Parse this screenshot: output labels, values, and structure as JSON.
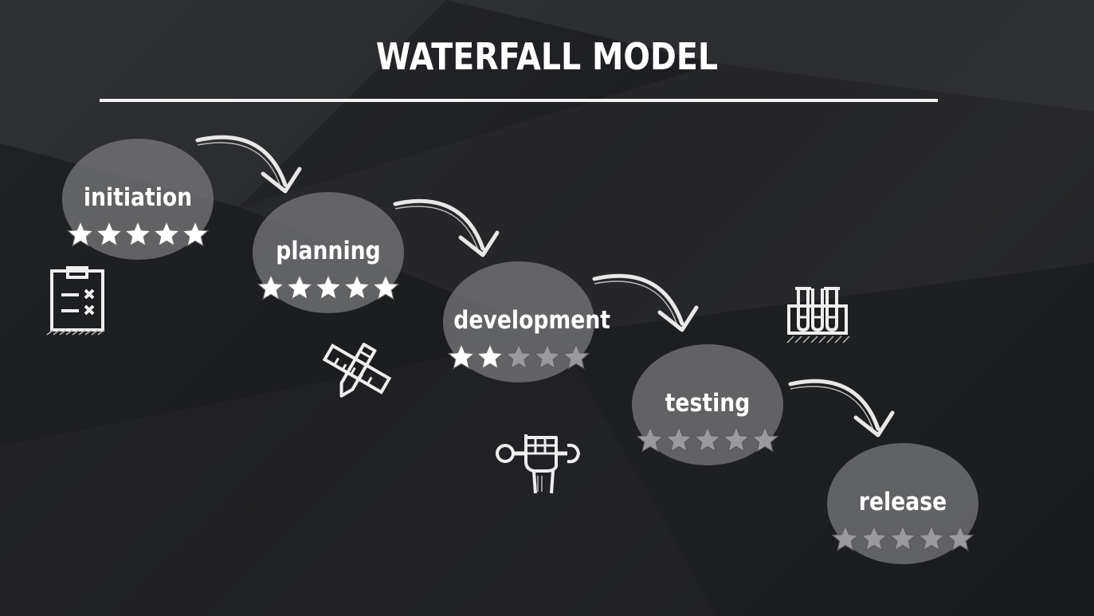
{
  "title": "WATERFALL MODEL",
  "rating_max": 5,
  "colors": {
    "star_filled": "#ffffff",
    "star_empty": "#9a9a9c",
    "stage_fill": "#7d7d7f",
    "line": "#f2f2f2"
  },
  "stages": [
    {
      "label": "initiation",
      "rating": 5
    },
    {
      "label": "planning",
      "rating": 5
    },
    {
      "label": "development",
      "rating": 2
    },
    {
      "label": "testing",
      "rating": 0
    },
    {
      "label": "release",
      "rating": 0
    }
  ],
  "icons": [
    "clipboard-checklist-icon",
    "pencil-ruler-icon",
    "fist-wrench-icon",
    "test-tubes-icon"
  ]
}
